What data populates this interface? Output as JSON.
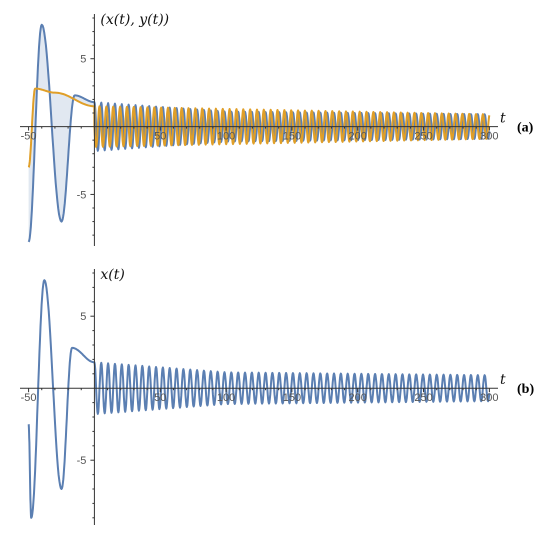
{
  "chart_data": [
    {
      "panel": "(a)",
      "type": "line",
      "ylabel": "(x(t), y(t))",
      "xlabel": "t",
      "xlim": [
        -55,
        302
      ],
      "ylim": [
        -8.8,
        8.0
      ],
      "xticks": [
        -50,
        50,
        100,
        150,
        200,
        250,
        300
      ],
      "yticks": [
        5,
        -5
      ],
      "filling_between_series": true,
      "colors": {
        "x": "#5b7fb2",
        "y": "#e09f28"
      },
      "series": [
        {
          "key": "x",
          "description_points": [
            {
              "t": -50,
              "value": -8.5
            },
            {
              "t": -40,
              "value": 7.5
            },
            {
              "t": -25,
              "value": -7.0
            },
            {
              "t": -15,
              "value": 2.3
            },
            {
              "t": 0,
              "value": 1.8
            },
            {
              "t": 100,
              "value": 1.1
            },
            {
              "t": 300,
              "value": 0.9
            }
          ],
          "steady_amplitude": 0.9,
          "steady_period": 5.2
        },
        {
          "key": "y",
          "description_points": [
            {
              "t": -50,
              "value": -3.0
            },
            {
              "t": -45,
              "value": 2.8
            },
            {
              "t": -30,
              "value": 2.5
            },
            {
              "t": 0,
              "value": 1.5
            },
            {
              "t": 300,
              "value": 0.9
            }
          ],
          "steady_amplitude": 0.9,
          "steady_period": 5.2
        }
      ]
    },
    {
      "panel": "(b)",
      "type": "line",
      "ylabel": "x(t)",
      "xlabel": "t",
      "xlim": [
        -55,
        302
      ],
      "ylim": [
        -9.5,
        8.0
      ],
      "xticks": [
        -50,
        50,
        100,
        150,
        200,
        250,
        300
      ],
      "yticks": [
        5,
        -5
      ],
      "colors": {
        "x": "#5b7fb2"
      },
      "series": [
        {
          "key": "x",
          "description_points": [
            {
              "t": -50,
              "value": -2.5
            },
            {
              "t": -48,
              "value": -9.0
            },
            {
              "t": -38,
              "value": 7.5
            },
            {
              "t": -25,
              "value": -7.0
            },
            {
              "t": -17,
              "value": 2.8
            },
            {
              "t": 0,
              "value": 1.8
            },
            {
              "t": 100,
              "value": 1.1
            },
            {
              "t": 300,
              "value": 0.9
            }
          ],
          "steady_amplitude": 0.9,
          "steady_period": 5.2
        }
      ]
    }
  ]
}
